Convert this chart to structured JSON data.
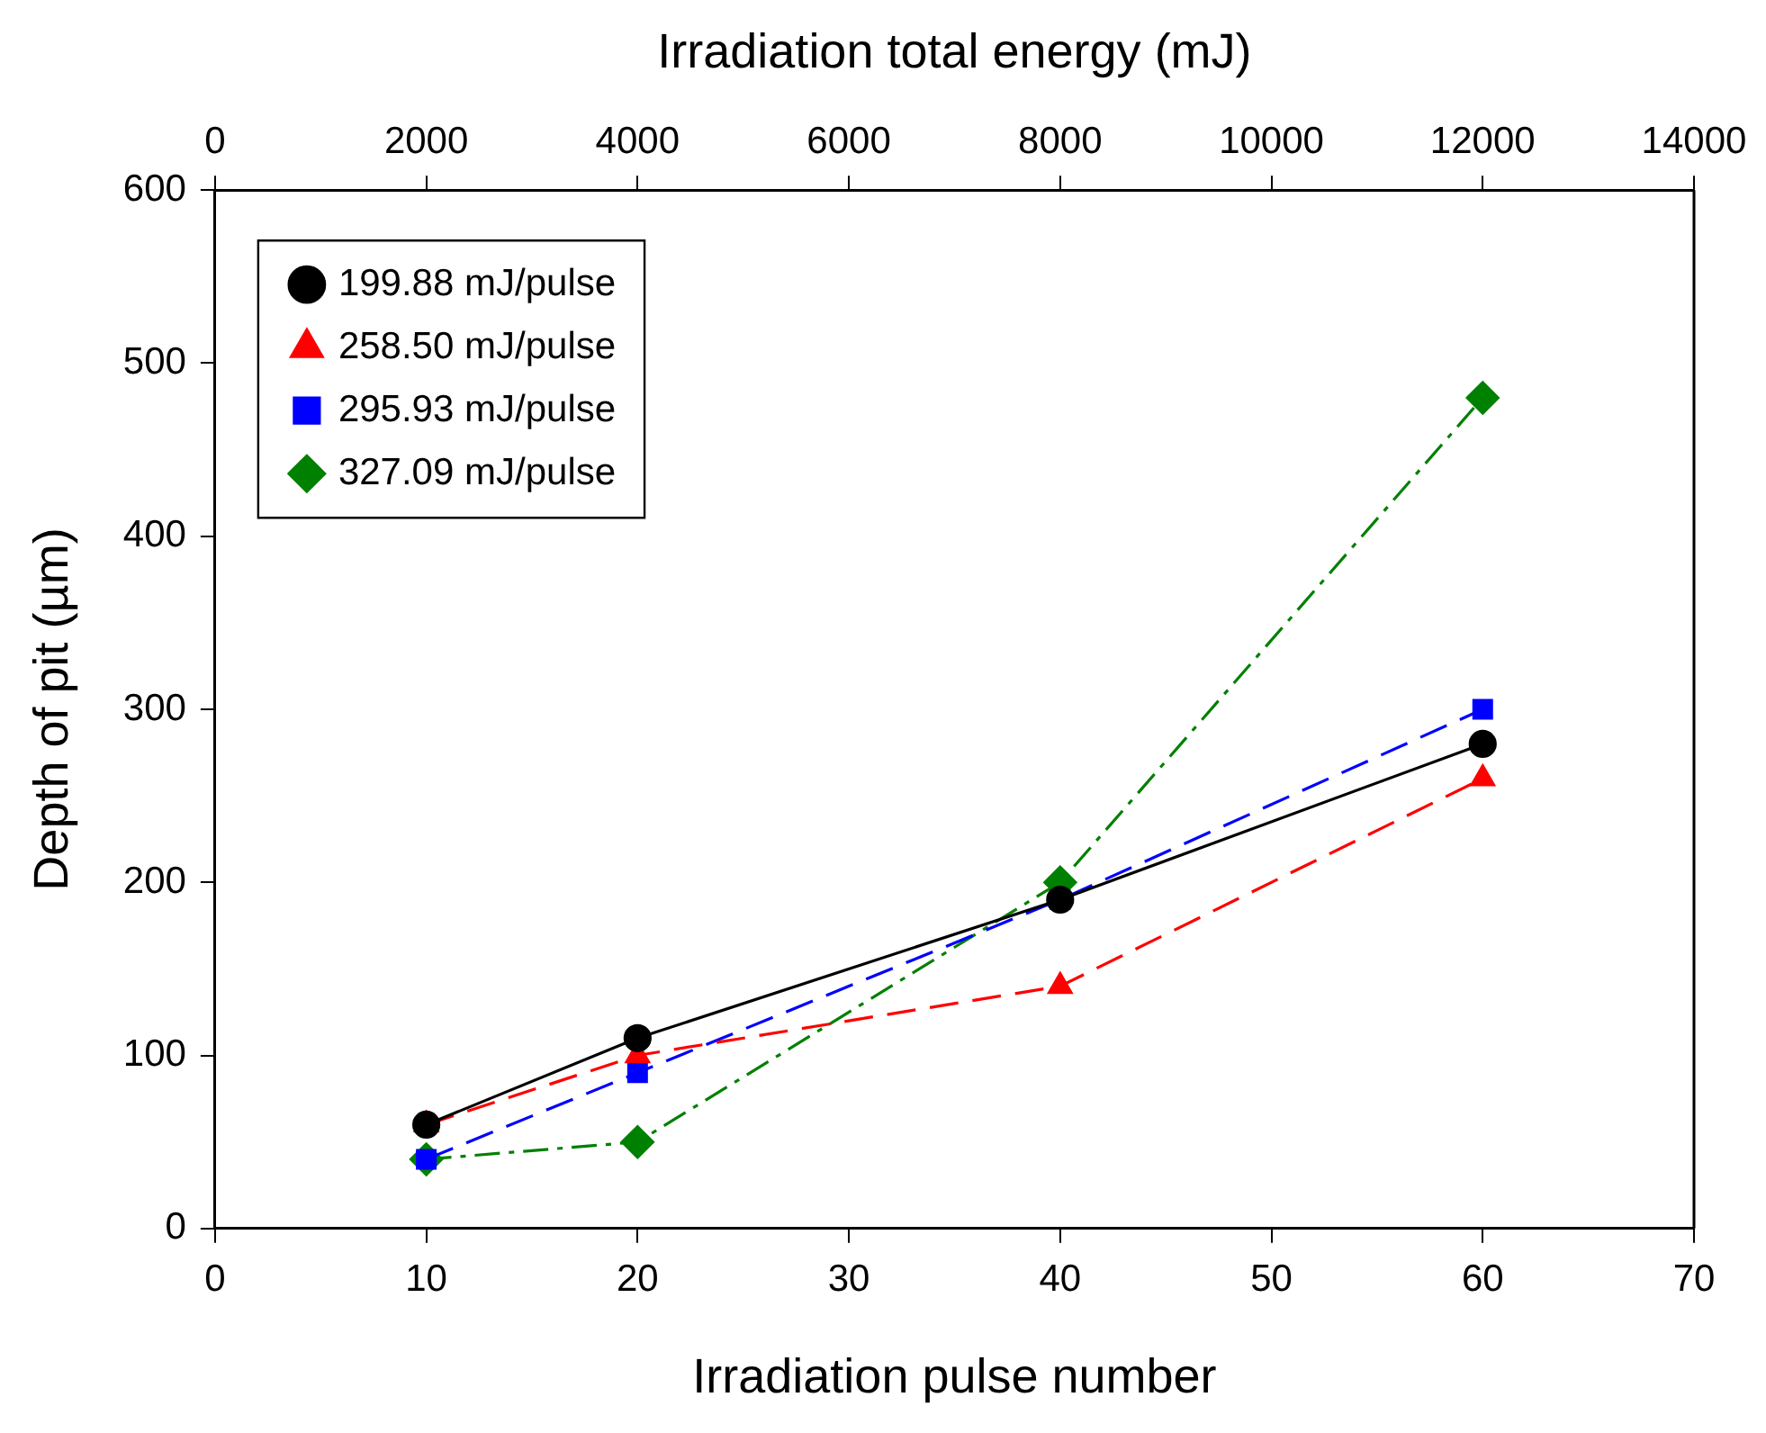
{
  "chart_data": {
    "type": "line",
    "xlabel": "Irradiation pulse number",
    "ylabel": "Depth of pit (µm)",
    "x2label": "Irradiation total energy (mJ)",
    "x": [
      10,
      20,
      40,
      60
    ],
    "series": [
      {
        "name": "199.88 mJ/pulse",
        "color": "#000000",
        "values": [
          60,
          110,
          190,
          280
        ],
        "marker": "circle",
        "line_style": "solid"
      },
      {
        "name": "258.50 mJ/pulse",
        "color": "#ff0000",
        "values": [
          60,
          100,
          140,
          260
        ],
        "marker": "triangle",
        "line_style": "dashed"
      },
      {
        "name": "295.93 mJ/pulse",
        "color": "#0000ff",
        "values": [
          40,
          90,
          190,
          300
        ],
        "marker": "square",
        "line_style": "dashed"
      },
      {
        "name": "327.09 mJ/pulse",
        "color": "#008000",
        "values": [
          40,
          50,
          200,
          480
        ],
        "marker": "diamond",
        "line_style": "dashdot"
      }
    ],
    "xlim": [
      0,
      70
    ],
    "xticks": [
      0,
      10,
      20,
      30,
      40,
      50,
      60,
      70
    ],
    "x2lim": [
      0,
      14000
    ],
    "x2ticks": [
      0,
      2000,
      4000,
      6000,
      8000,
      10000,
      12000,
      14000
    ],
    "ylim": [
      0,
      600
    ],
    "yticks": [
      0,
      100,
      200,
      300,
      400,
      500,
      600
    ],
    "grid": false,
    "legend": "top left"
  }
}
